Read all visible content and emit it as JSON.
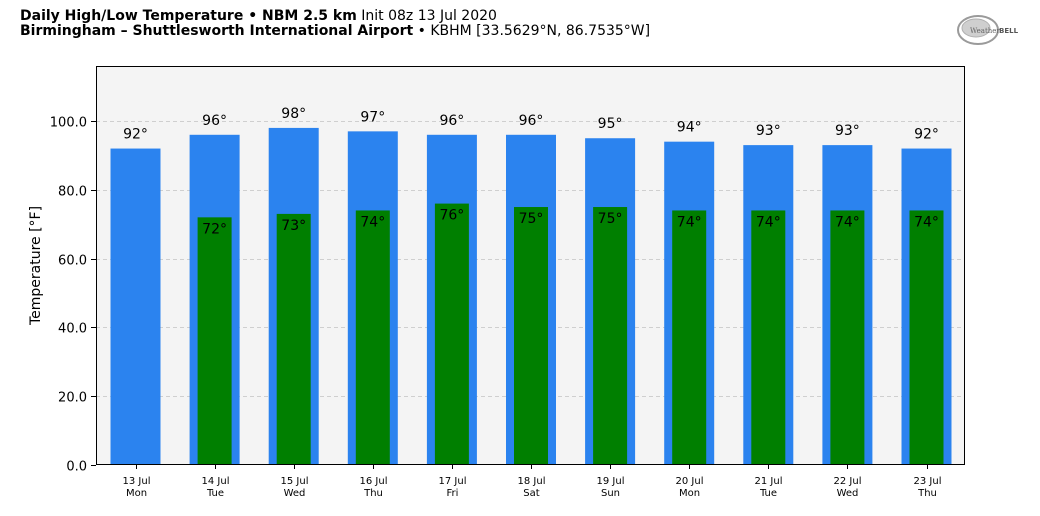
{
  "header": {
    "line1_bold": "Daily High/Low Temperature • NBM 2.5 km",
    "line1_normal": "Init 08z 13 Jul 2020",
    "line2_bold": "Birmingham – Shuttlesworth International Airport",
    "line2_normal": "• KBHM [33.5629°N, 86.7535°W]"
  },
  "logo": {
    "text_left": "Weather",
    "text_right": "BELL"
  },
  "chart_data": {
    "type": "bar",
    "categories": [
      "13 Jul\nMon",
      "14 Jul\nTue",
      "15 Jul\nWed",
      "16 Jul\nThu",
      "17 Jul\nFri",
      "18 Jul\nSat",
      "19 Jul\nSun",
      "20 Jul\nMon",
      "21 Jul\nTue",
      "22 Jul\nWed",
      "23 Jul\nThu"
    ],
    "category_dates": [
      "13 Jul",
      "14 Jul",
      "15 Jul",
      "16 Jul",
      "17 Jul",
      "18 Jul",
      "19 Jul",
      "20 Jul",
      "21 Jul",
      "22 Jul",
      "23 Jul"
    ],
    "category_days": [
      "Mon",
      "Tue",
      "Wed",
      "Thu",
      "Fri",
      "Sat",
      "Sun",
      "Mon",
      "Tue",
      "Wed",
      "Thu"
    ],
    "series": [
      {
        "values": [
          92,
          96,
          98,
          97,
          96,
          96,
          95,
          94,
          93,
          93,
          92
        ],
        "labels": [
          "92°",
          "96°",
          "98°",
          "97°",
          "96°",
          "96°",
          "95°",
          "94°",
          "93°",
          "93°",
          "92°"
        ],
        "color": "#2b83ef"
      },
      {
        "values": [
          null,
          72,
          73,
          74,
          76,
          75,
          75,
          74,
          74,
          74,
          74
        ],
        "labels": [
          "",
          "72°",
          "73°",
          "74°",
          "76°",
          "75°",
          "75°",
          "74°",
          "74°",
          "74°",
          "74°"
        ],
        "color": "#007f00"
      }
    ],
    "ylabel": "Temperature [°F]",
    "ylim": [
      0,
      116
    ],
    "yticks": [
      0,
      20,
      40,
      60,
      80,
      100
    ],
    "ytick_labels": [
      "0.0",
      "20.0",
      "40.0",
      "60.0",
      "80.0",
      "100.0"
    ],
    "grid": true,
    "plot_background": "#f4f4f4"
  }
}
